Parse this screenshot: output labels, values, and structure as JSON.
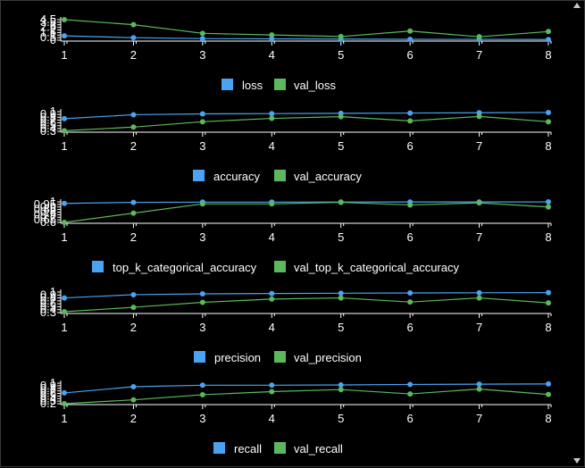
{
  "colors": {
    "train": "#4aa3f0",
    "val": "#5cb85c",
    "axis": "#ffffff",
    "background": "#000000"
  },
  "chart_data": [
    {
      "type": "line",
      "x": [
        1,
        2,
        3,
        4,
        5,
        6,
        7,
        8
      ],
      "ylim": [
        0,
        4.5
      ],
      "y_ticks": [
        "4.5",
        "3.5",
        "3",
        "2.5",
        "2",
        "1.5",
        "1",
        "0.5",
        "0"
      ],
      "series": [
        {
          "name": "loss",
          "values": [
            0.95,
            0.55,
            0.35,
            0.3,
            0.25,
            0.2,
            0.18,
            0.15
          ]
        },
        {
          "name": "val_loss",
          "values": [
            4.5,
            3.4,
            1.5,
            1.15,
            0.8,
            2.0,
            0.75,
            1.9
          ]
        }
      ]
    },
    {
      "type": "line",
      "x": [
        1,
        2,
        3,
        4,
        5,
        6,
        7,
        8
      ],
      "ylim": [
        0.3,
        1
      ],
      "y_ticks": [
        "1",
        "0.9",
        "0.8",
        "0.7",
        "0.6",
        "0.5",
        "0.4",
        "0.3"
      ],
      "series": [
        {
          "name": "accuracy",
          "values": [
            0.75,
            0.89,
            0.92,
            0.93,
            0.94,
            0.95,
            0.96,
            0.97
          ]
        },
        {
          "name": "val_accuracy",
          "values": [
            0.32,
            0.45,
            0.64,
            0.76,
            0.82,
            0.67,
            0.83,
            0.64
          ]
        }
      ]
    },
    {
      "type": "line",
      "x": [
        1,
        2,
        3,
        4,
        5,
        6,
        7,
        8
      ],
      "ylim": [
        0.6,
        1
      ],
      "y_ticks": [
        "1",
        "0.95",
        "0.9",
        "0.85",
        "0.8",
        "0.75",
        "0.7",
        "0.65",
        "0.6"
      ],
      "series": [
        {
          "name": "top_k_categorical_accuracy",
          "values": [
            0.97,
            0.99,
            0.995,
            0.995,
            0.997,
            0.998,
            0.998,
            0.999
          ]
        },
        {
          "name": "val_top_k_categorical_accuracy",
          "values": [
            0.6,
            0.78,
            0.96,
            0.96,
            0.99,
            0.94,
            0.98,
            0.9
          ]
        }
      ]
    },
    {
      "type": "line",
      "x": [
        1,
        2,
        3,
        4,
        5,
        6,
        7,
        8
      ],
      "ylim": [
        0.3,
        1
      ],
      "y_ticks": [
        "1",
        "0.9",
        "0.8",
        "0.7",
        "0.6",
        "0.5",
        "0.4",
        "0.3"
      ],
      "series": [
        {
          "name": "precision",
          "values": [
            0.8,
            0.91,
            0.94,
            0.95,
            0.96,
            0.97,
            0.975,
            0.98
          ]
        },
        {
          "name": "val_precision",
          "values": [
            0.33,
            0.48,
            0.65,
            0.76,
            0.8,
            0.66,
            0.8,
            0.63
          ]
        }
      ]
    },
    {
      "type": "line",
      "x": [
        1,
        2,
        3,
        4,
        5,
        6,
        7,
        8
      ],
      "ylim": [
        0.2,
        1
      ],
      "y_ticks": [
        "1",
        "0.9",
        "0.8",
        "0.7",
        "0.6",
        "0.5",
        "0.4",
        "0.3",
        "0.2"
      ],
      "series": [
        {
          "name": "recall",
          "values": [
            0.62,
            0.86,
            0.92,
            0.92,
            0.93,
            0.95,
            0.96,
            0.97
          ]
        },
        {
          "name": "val_recall",
          "values": [
            0.2,
            0.35,
            0.55,
            0.67,
            0.75,
            0.58,
            0.77,
            0.56
          ]
        }
      ]
    }
  ]
}
